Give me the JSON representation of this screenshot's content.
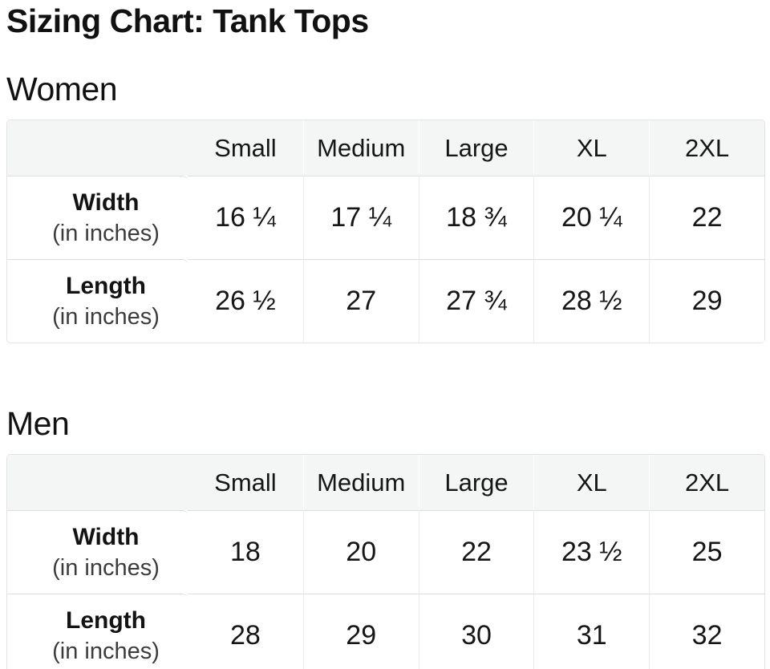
{
  "page": {
    "title": "Sizing Chart: Tank Tops"
  },
  "sections": [
    {
      "heading": "Women",
      "columns": [
        "Small",
        "Medium",
        "Large",
        "XL",
        "2XL"
      ],
      "rows": [
        {
          "label": "Width",
          "sublabel": "(in inches)",
          "values": [
            "16 ¼",
            "17 ¼",
            "18 ¾",
            "20 ¼",
            "22"
          ]
        },
        {
          "label": "Length",
          "sublabel": "(in inches)",
          "values": [
            "26 ½",
            "27",
            "27 ¾",
            "28 ½",
            "29"
          ]
        }
      ]
    },
    {
      "heading": "Men",
      "columns": [
        "Small",
        "Medium",
        "Large",
        "XL",
        "2XL"
      ],
      "rows": [
        {
          "label": "Width",
          "sublabel": "(in inches)",
          "values": [
            "18",
            "20",
            "22",
            "23 ½",
            "25"
          ]
        },
        {
          "label": "Length",
          "sublabel": "(in inches)",
          "values": [
            "28",
            "29",
            "30",
            "31",
            "32"
          ]
        }
      ]
    }
  ],
  "chart_data": [
    {
      "type": "table",
      "title": "Women",
      "columns": [
        "",
        "Small",
        "Medium",
        "Large",
        "XL",
        "2XL"
      ],
      "rows": [
        [
          "Width (in inches)",
          "16 ¼",
          "17 ¼",
          "18 ¾",
          "20 ¼",
          "22"
        ],
        [
          "Length (in inches)",
          "26 ½",
          "27",
          "27 ¾",
          "28 ½",
          "29"
        ]
      ]
    },
    {
      "type": "table",
      "title": "Men",
      "columns": [
        "",
        "Small",
        "Medium",
        "Large",
        "XL",
        "2XL"
      ],
      "rows": [
        [
          "Width (in inches)",
          "18",
          "20",
          "22",
          "23 ½",
          "25"
        ],
        [
          "Length (in inches)",
          "28",
          "29",
          "30",
          "31",
          "32"
        ]
      ]
    }
  ],
  "colors": {
    "header_bg": "#f4f5f5",
    "label_bg": "#f6f7f7",
    "border": "#dcdddd",
    "text": "#131313"
  }
}
